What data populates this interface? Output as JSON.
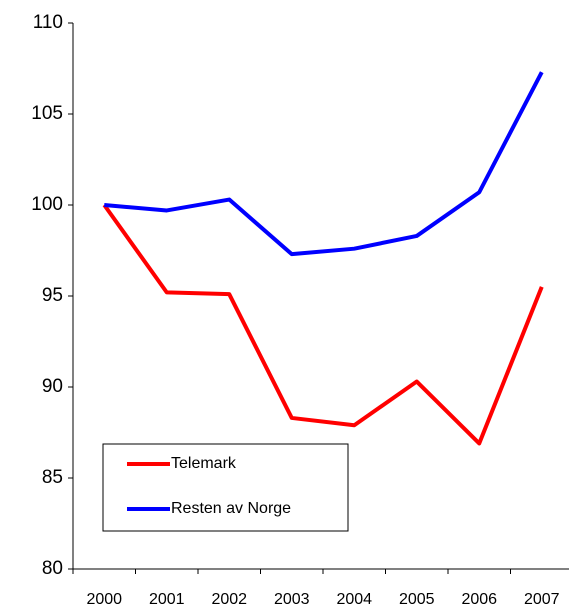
{
  "chart_data": {
    "type": "line",
    "categories": [
      "2000",
      "2001",
      "2002",
      "2003",
      "2004",
      "2005",
      "2006",
      "2007"
    ],
    "series": [
      {
        "name": "Telemark",
        "color": "#ff0000",
        "values": [
          100,
          95.2,
          95.1,
          88.3,
          87.9,
          90.3,
          86.9,
          95.5
        ]
      },
      {
        "name": "Resten av Norge",
        "color": "#0000ff",
        "values": [
          100,
          99.7,
          100.3,
          97.3,
          97.6,
          98.3,
          100.7,
          107.3
        ]
      }
    ],
    "ylim": [
      80,
      110
    ],
    "yticks": [
      80,
      85,
      90,
      95,
      100,
      105,
      110
    ],
    "grid": false,
    "legend": "lower-left"
  }
}
